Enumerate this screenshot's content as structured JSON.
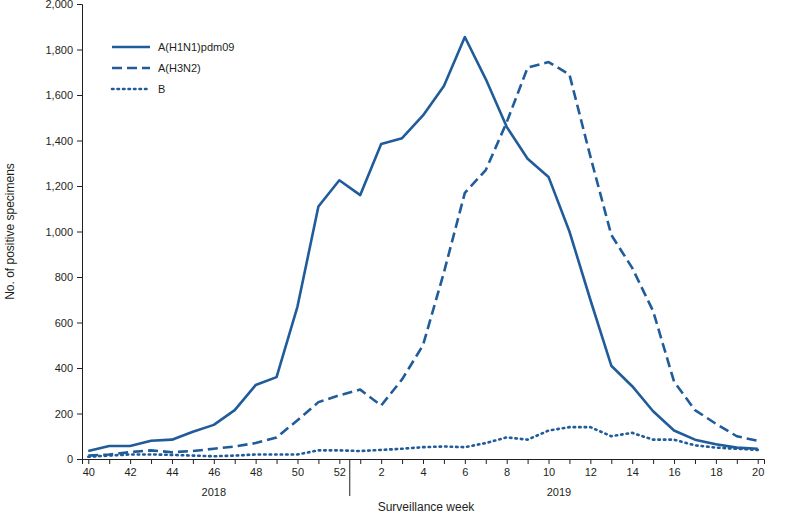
{
  "chart_data": {
    "type": "line",
    "x_label": "Surveillance week",
    "y_label": "No. of positive specimens",
    "categories": [
      "40",
      null,
      "42",
      null,
      "44",
      null,
      "46",
      null,
      "48",
      null,
      "50",
      null,
      "52",
      null,
      "2",
      null,
      "4",
      null,
      "6",
      null,
      "8",
      null,
      "10",
      null,
      "12",
      null,
      "14",
      null,
      "16",
      null,
      "18",
      null,
      "20"
    ],
    "x_groups": [
      {
        "label": "2018",
        "first": 0,
        "last": 12
      },
      {
        "label": "2019",
        "first": 13,
        "last": 32
      }
    ],
    "ylim": [
      0,
      2000
    ],
    "yticks": [
      0,
      200,
      400,
      600,
      800,
      {
        "value": 1000,
        "label": "1,000"
      },
      {
        "value": 1200,
        "label": "1,200"
      },
      {
        "value": 1400,
        "label": "1,400"
      },
      {
        "value": 1600,
        "label": "1,600"
      },
      {
        "value": 1800,
        "label": "1,800"
      },
      {
        "value": 2000,
        "label": "2,000"
      }
    ],
    "grid": false,
    "legend": "top-left",
    "series": [
      {
        "name": "A(H1N1)pdm09",
        "color": "#1f5c99",
        "line_style": "solid",
        "values": [
          35,
          57,
          57,
          80,
          85,
          120,
          150,
          215,
          325,
          360,
          670,
          1110,
          1225,
          1160,
          1385,
          1410,
          1510,
          1640,
          1855,
          1670,
          1460,
          1320,
          1240,
          1000,
          700,
          410,
          320,
          210,
          125,
          85,
          65,
          50,
          45
        ]
      },
      {
        "name": "A(H3N2)",
        "color": "#1f5c99",
        "line_style": "dashed",
        "values": [
          15,
          20,
          30,
          38,
          30,
          35,
          45,
          55,
          70,
          95,
          170,
          250,
          280,
          305,
          235,
          350,
          500,
          820,
          1170,
          1270,
          1480,
          1720,
          1745,
          1690,
          1330,
          985,
          840,
          650,
          340,
          215,
          155,
          100,
          80
        ]
      },
      {
        "name": "B",
        "color": "#1f5c99",
        "line_style": "dotted",
        "values": [
          10,
          15,
          20,
          20,
          18,
          15,
          12,
          15,
          20,
          20,
          20,
          38,
          38,
          35,
          40,
          45,
          52,
          55,
          52,
          70,
          95,
          85,
          125,
          140,
          140,
          100,
          115,
          85,
          85,
          60,
          50,
          45,
          40
        ]
      }
    ]
  }
}
